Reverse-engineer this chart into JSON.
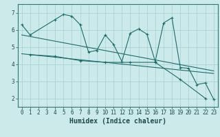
{
  "xlabel": "Humidex (Indice chaleur)",
  "background_color": "#cceaea",
  "line_color": "#1a6b6b",
  "grid_color": "#aad4d4",
  "xlim": [
    -0.5,
    23.5
  ],
  "ylim": [
    1.5,
    7.5
  ],
  "xticks": [
    0,
    1,
    2,
    3,
    4,
    5,
    6,
    7,
    8,
    9,
    10,
    11,
    12,
    13,
    14,
    15,
    16,
    17,
    18,
    19,
    20,
    21,
    22,
    23
  ],
  "yticks": [
    2,
    3,
    4,
    5,
    6,
    7
  ],
  "series1_x": [
    0,
    1,
    4,
    5,
    6,
    7,
    8,
    9,
    10,
    11,
    12,
    13,
    14,
    15,
    16,
    17,
    18,
    19,
    20,
    21,
    22,
    23
  ],
  "series1_y": [
    6.3,
    5.7,
    6.6,
    6.9,
    6.8,
    6.3,
    4.7,
    4.8,
    5.7,
    5.15,
    4.15,
    5.8,
    6.05,
    5.75,
    4.15,
    6.4,
    6.7,
    3.8,
    3.75,
    2.8,
    2.9,
    1.95
  ],
  "series2_x": [
    1,
    4,
    7,
    10,
    13,
    16,
    19,
    22
  ],
  "series2_y": [
    4.55,
    4.45,
    4.2,
    4.1,
    4.1,
    4.1,
    3.1,
    2.0
  ],
  "series3_x": [
    0,
    23
  ],
  "series3_y": [
    5.7,
    3.6
  ],
  "series4_x": [
    0,
    23
  ],
  "series4_y": [
    4.6,
    3.45
  ],
  "tick_fontsize": 5.5,
  "xlabel_fontsize": 7
}
